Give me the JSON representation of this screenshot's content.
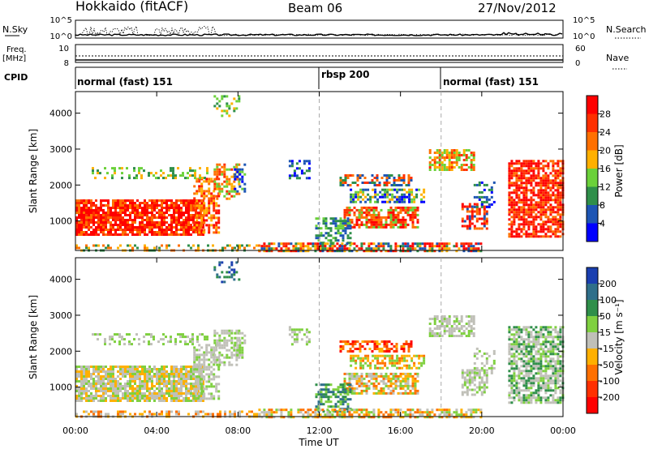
{
  "header": {
    "title": "Hokkaido (fitACF)",
    "beam": "Beam 06",
    "date": "27/Nov/2012"
  },
  "top_panels": {
    "nsky_label": "N.Sky",
    "nsearch_label": "N.Search",
    "nsky_ticks": [
      "10^5",
      "10^0"
    ],
    "freq_label": "Freq.",
    "freq_unit": "[MHz]",
    "freq_ticks": [
      "10",
      "8"
    ],
    "nave_label": "Nave",
    "nave_ticks": [
      "60",
      "0"
    ],
    "cpid_label": "CPID",
    "cpid_segments": [
      {
        "label": "normal (fast) 151",
        "start": 0
      },
      {
        "label": "rbsp 200",
        "start": 12
      },
      {
        "label": "normal (fast) 151",
        "start": 18
      }
    ]
  },
  "chart_data": [
    {
      "type": "heatmap",
      "ylabel": "Slant Range [km]",
      "xlabel": "",
      "xlim": [
        0,
        24
      ],
      "ylim": [
        180,
        4600
      ],
      "y_ticks": [
        "1000",
        "2000",
        "3000",
        "4000"
      ],
      "y_tick_values": [
        1000,
        2000,
        3000,
        4000
      ],
      "colorbar": {
        "label": "Power [dB]",
        "ticks": [
          "4",
          "8",
          "12",
          "16",
          "20",
          "24",
          "28"
        ],
        "colors": [
          "#0000ff",
          "#1d55b4",
          "#2f8f4a",
          "#6bd13a",
          "#ffb000",
          "#ff7000",
          "#ff3000",
          "#ff0000"
        ]
      }
    },
    {
      "type": "heatmap",
      "xlabel": "Time UT",
      "ylabel": "Slant Range [km]",
      "xlim": [
        0,
        24
      ],
      "ylim": [
        180,
        4600
      ],
      "x_ticks": [
        "00:00",
        "04:00",
        "08:00",
        "12:00",
        "16:00",
        "20:00",
        "00:00"
      ],
      "x_tick_values": [
        0,
        4,
        8,
        12,
        16,
        20,
        24
      ],
      "y_ticks": [
        "1000",
        "2000",
        "3000",
        "4000"
      ],
      "y_tick_values": [
        1000,
        2000,
        3000,
        4000
      ],
      "colorbar": {
        "label": "Velocity [m s⁻¹]",
        "ticks": [
          "200",
          "100",
          "50",
          "15",
          "-15",
          "-50",
          "-100",
          "-200"
        ],
        "colors": [
          "#1a3fb0",
          "#2f6f8a",
          "#2f8f4a",
          "#7fd040",
          "#c0c0b8",
          "#ffb000",
          "#ff7000",
          "#ff3000",
          "#ff0000"
        ]
      }
    }
  ]
}
